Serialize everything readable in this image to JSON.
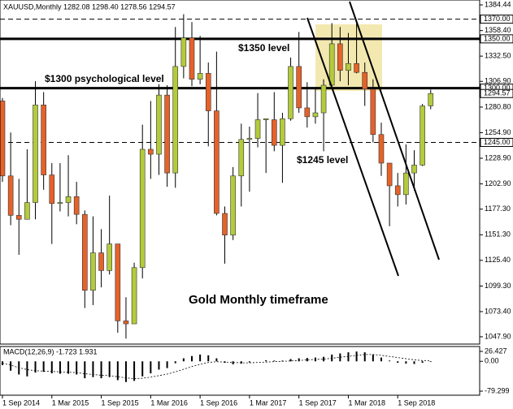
{
  "chart_data": {
    "type": "candlestick",
    "title": "XAUUSD,Monthly  1282.08 1298.40 1278.56 1294.57",
    "categories": [
      "1 Sep 2014",
      null,
      null,
      null,
      null,
      null,
      "1 Mar 2015",
      null,
      null,
      null,
      null,
      null,
      "1 Sep 2015",
      null,
      null,
      null,
      null,
      null,
      "1 Mar 2016",
      null,
      null,
      null,
      null,
      null,
      "1 Sep 2016",
      null,
      null,
      null,
      null,
      null,
      "1 Mar 2017",
      null,
      null,
      null,
      null,
      null,
      "1 Sep 2017",
      null,
      null,
      null,
      null,
      null,
      "1 Mar 2018",
      null,
      null,
      null,
      null,
      null,
      "1 Sep 2018",
      null,
      null,
      null,
      null
    ],
    "open": [
      1287,
      1211,
      1171,
      1167,
      1184,
      1283,
      1212,
      1183,
      1184,
      1190,
      1172,
      1095,
      1133,
      1115,
      1142,
      1064,
      1061,
      1118,
      1238,
      1233,
      1293,
      1214,
      1322,
      1351,
      1309,
      1315,
      1277,
      1173,
      1151,
      1211,
      1248,
      1249,
      1268,
      1268,
      1242,
      1269,
      1322,
      1280,
      1271,
      1275,
      1303,
      1345,
      1318,
      1325,
      1316,
      1299,
      1253,
      1224,
      1201,
      1192,
      1214,
      1222,
      1282.08
    ],
    "high": [
      1290,
      1255,
      1208,
      1238,
      1307,
      1296,
      1224,
      1224,
      1232,
      1205,
      1176,
      1170,
      1157,
      1191,
      1142,
      1088,
      1123,
      1263,
      1287,
      1304,
      1303,
      1362,
      1375,
      1367,
      1353,
      1326,
      1337,
      1180,
      1220,
      1264,
      1261,
      1295,
      1269,
      1296,
      1275,
      1331,
      1357,
      1306,
      1299,
      1309,
      1366,
      1362,
      1356,
      1366,
      1326,
      1309,
      1265,
      1224,
      1214,
      1243,
      1237,
      1284,
      1298.4
    ],
    "low": [
      1205,
      1161,
      1131,
      1167,
      1167,
      1197,
      1142,
      1175,
      1170,
      1162,
      1077,
      1080,
      1098,
      1111,
      1052,
      1046,
      1061,
      1107,
      1208,
      1212,
      1200,
      1199,
      1310,
      1302,
      1304,
      1241,
      1171,
      1122,
      1146,
      1180,
      1195,
      1240,
      1214,
      1236,
      1204,
      1267,
      1275,
      1260,
      1264,
      1236,
      1302,
      1307,
      1303,
      1315,
      1282,
      1245,
      1211,
      1160,
      1180,
      1182,
      1196,
      1221,
      1278.56
    ],
    "close": [
      1211,
      1171,
      1167,
      1184,
      1283,
      1212,
      1183,
      1184,
      1190,
      1172,
      1095,
      1133,
      1115,
      1142,
      1064,
      1061,
      1118,
      1238,
      1233,
      1293,
      1214,
      1322,
      1351,
      1309,
      1315,
      1277,
      1173,
      1151,
      1211,
      1248,
      1249,
      1268,
      1269,
      1242,
      1269,
      1322,
      1280,
      1271,
      1275,
      1303,
      1345,
      1318,
      1325,
      1316,
      1299,
      1253,
      1224,
      1201,
      1192,
      1214,
      1222,
      1282,
      1294.57
    ],
    "up_color": "#b3cb3b",
    "down_color": "#e5622a",
    "ylim": [
      1040.46,
      1389.4
    ],
    "yticks": [
      1384.44,
      {
        "value": 1358.4,
        "label": "1358.40"
      },
      {
        "value": 1332.5,
        "label": "1332.50"
      },
      {
        "value": 1306.9,
        "label": "1306.90"
      },
      {
        "value": 1280.8,
        "label": "1280.80"
      },
      {
        "value": 1254.9,
        "label": "1254.90"
      },
      {
        "value": 1228.9,
        "label": "1228.90"
      },
      {
        "value": 1202.9,
        "label": "1202.90"
      },
      {
        "value": 1177.3,
        "label": "1177.30"
      },
      {
        "value": 1151.3,
        "label": "1151.30"
      },
      {
        "value": 1125.4,
        "label": "1125.40"
      },
      {
        "value": 1099.3,
        "label": "1099.30"
      },
      {
        "value": 1073.4,
        "label": "1073.40"
      },
      {
        "value": 1047.9,
        "label": "1047.90"
      }
    ],
    "levels": [
      {
        "value": 1370,
        "label": "1370.00",
        "style": "dashed"
      },
      {
        "value": 1350,
        "label": "1350.00",
        "style": "solid"
      },
      {
        "value": 1300,
        "label": "1300.00",
        "style": "solid"
      },
      {
        "value": 1245,
        "label": "1245.00",
        "style": "dashed"
      }
    ],
    "last_price": {
      "value": 1294.57,
      "label": "1294.57"
    },
    "annotations": [
      "$1350 level",
      "$1300 psychological level",
      "$1245 level",
      "Gold Monthly timeframe"
    ],
    "macd": {
      "title": "MACD(12,26,9) -1.723 1.931",
      "values": [
        -10,
        -25,
        -35,
        -40,
        -30,
        -28,
        -32,
        -33,
        -33,
        -35,
        -45,
        -42,
        -45,
        -42,
        -50,
        -55,
        -52,
        -40,
        -32,
        -22,
        -18,
        -5,
        8,
        14,
        18,
        16,
        8,
        -4,
        -8,
        -6,
        -3,
        0,
        3,
        2,
        2,
        6,
        8,
        9,
        10,
        12,
        18,
        21,
        24,
        26,
        24,
        18,
        10,
        2,
        -4,
        -6,
        -7,
        -4,
        -1.723
      ],
      "signal": [
        -5,
        -10,
        -17,
        -22,
        -25,
        -26,
        -27,
        -28,
        -29,
        -30,
        -33,
        -35,
        -37,
        -38,
        -41,
        -44,
        -46,
        -45,
        -42,
        -38,
        -34,
        -28,
        -21,
        -14,
        -8,
        -3,
        -1,
        -2,
        -3,
        -4,
        -4,
        -3,
        -2,
        -1,
        0,
        1,
        2,
        4,
        5,
        6,
        8,
        11,
        13,
        16,
        18,
        18,
        16,
        13,
        10,
        7,
        4,
        2,
        1.931
      ],
      "ylim": [
        -90.09,
        39.37
      ],
      "yticks": [
        26.427,
        {
          "value": 0,
          "label": "0.00"
        },
        -79.299
      ]
    }
  }
}
